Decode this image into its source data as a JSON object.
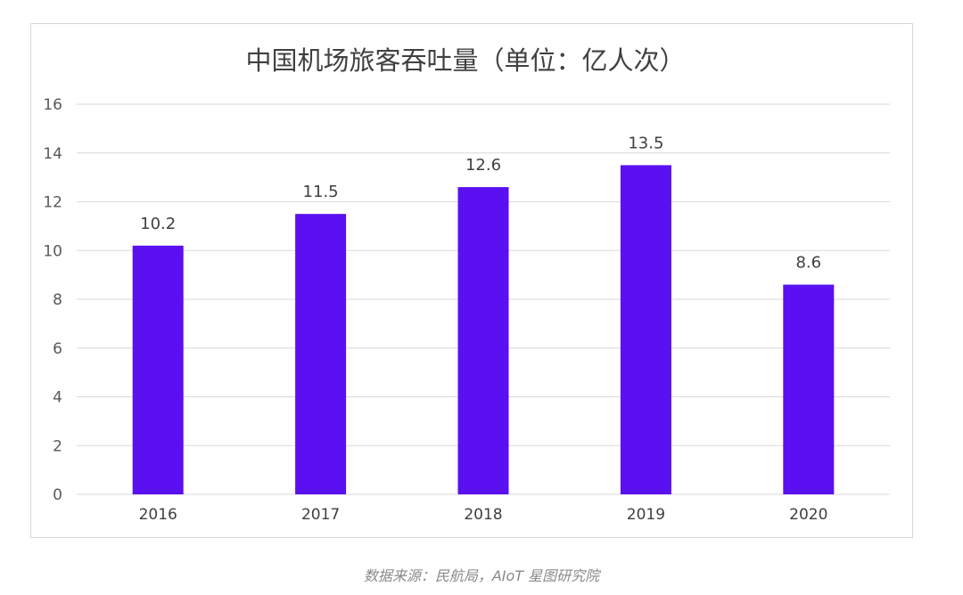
{
  "chart_data": {
    "type": "bar",
    "title": "中国机场旅客吞吐量（单位：亿人次）",
    "categories": [
      "2016",
      "2017",
      "2018",
      "2019",
      "2020"
    ],
    "values": [
      10.2,
      11.5,
      12.6,
      13.5,
      8.6
    ],
    "data_labels": [
      "10.2",
      "11.5",
      "12.6",
      "13.5",
      "8.6"
    ],
    "ylim": [
      0,
      16
    ],
    "yticks": [
      0,
      2,
      4,
      6,
      8,
      10,
      12,
      14,
      16
    ],
    "grid": true,
    "legend": "none",
    "bar_color": "#5a10f0",
    "grid_color": "#d9d9d9"
  },
  "source": "数据来源：民航局，AIoT 星图研究院"
}
